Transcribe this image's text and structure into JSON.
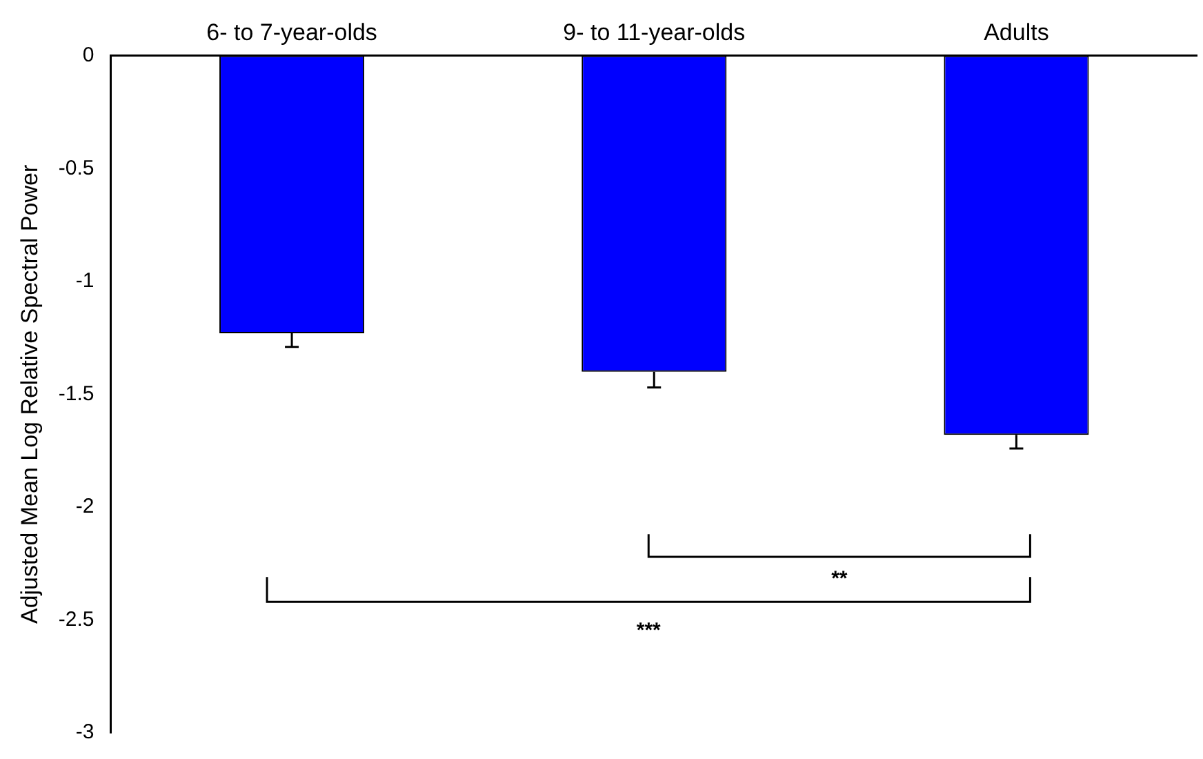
{
  "chart_data": {
    "type": "bar",
    "ylabel": "Adjusted Mean Log Relative Spectral Power",
    "categories": [
      "6- to 7-year-olds",
      "9- to 11-year-olds",
      "Adults"
    ],
    "values": [
      -1.23,
      -1.4,
      -1.68
    ],
    "errors": [
      [
        -1.29,
        -1.23
      ],
      [
        -1.47,
        -1.4
      ],
      [
        -1.74,
        -1.68
      ]
    ],
    "color": "#0000ff",
    "ylim": [
      -3,
      0
    ],
    "yticks": [
      -3,
      -2.5,
      -2,
      -1.5,
      -1,
      -0.5,
      0
    ],
    "grid": false,
    "legend": false,
    "annotations": [
      "**",
      "***"
    ]
  }
}
